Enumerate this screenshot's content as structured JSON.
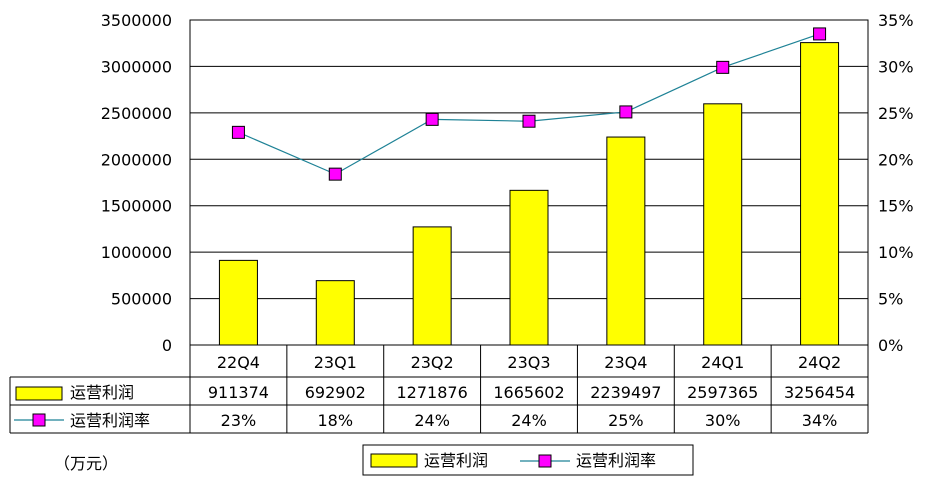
{
  "chart_data": {
    "type": "bar",
    "categories": [
      "22Q4",
      "23Q1",
      "23Q2",
      "23Q3",
      "23Q4",
      "24Q1",
      "24Q2"
    ],
    "series": [
      {
        "name": "运营利润",
        "type": "bar",
        "axis": "left",
        "color": "#ffff00",
        "values": [
          911374,
          692902,
          1271876,
          1665602,
          2239497,
          2597365,
          3256454
        ],
        "table_labels": [
          "911374",
          "692902",
          "1271876",
          "1665602",
          "2239497",
          "2597365",
          "3256454"
        ]
      },
      {
        "name": "运营利润率",
        "type": "line",
        "axis": "right",
        "color": "#1e8296",
        "marker_color": "#ff00ff",
        "values": [
          0.229,
          0.184,
          0.243,
          0.241,
          0.251,
          0.299,
          0.335
        ],
        "table_labels": [
          "23%",
          "18%",
          "24%",
          "24%",
          "25%",
          "30%",
          "34%"
        ]
      }
    ],
    "y_left": {
      "range": [
        0,
        3500000
      ],
      "ticks": [
        0,
        500000,
        1000000,
        1500000,
        2000000,
        2500000,
        3000000,
        3500000
      ],
      "tick_labels": [
        "0",
        "500000",
        "1000000",
        "1500000",
        "2000000",
        "2500000",
        "3000000",
        "3500000"
      ]
    },
    "y_right": {
      "range": [
        0,
        0.35
      ],
      "ticks": [
        0,
        0.05,
        0.1,
        0.15,
        0.2,
        0.25,
        0.3,
        0.35
      ],
      "tick_labels": [
        "0%",
        "5%",
        "10%",
        "15%",
        "20%",
        "25%",
        "30%",
        "35%"
      ]
    },
    "grid": true,
    "data_table": true,
    "legend_position": "bottom",
    "unit_note": "（万元）"
  }
}
